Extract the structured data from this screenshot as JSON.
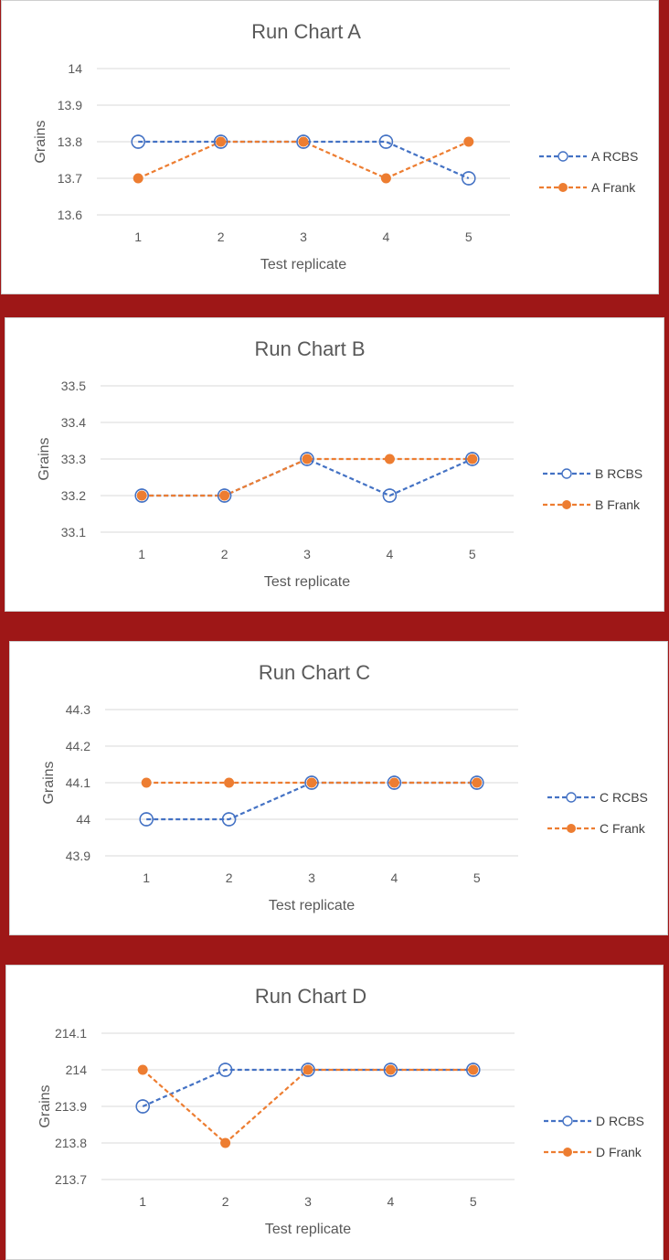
{
  "colors": {
    "rcbs": "#4472c4",
    "frank": "#ed7d31",
    "grid": "#d9d9d9",
    "text": "#595959"
  },
  "chart_data": [
    {
      "type": "line",
      "title": "Run Chart A",
      "xlabel": "Test replicate",
      "ylabel": "Grains",
      "x": [
        1,
        2,
        3,
        4,
        5
      ],
      "x_labels": [
        "1",
        "2",
        "3",
        "4",
        "5"
      ],
      "y_ticks": [
        13.6,
        13.7,
        13.8,
        13.9,
        14
      ],
      "y_tick_labels": [
        "13.6",
        "13.7",
        "13.8",
        "13.9",
        "14"
      ],
      "ylim": [
        13.6,
        14
      ],
      "grid": true,
      "legend": "right",
      "series": [
        {
          "name": "A RCBS",
          "marker": "hollow-circle",
          "values": [
            13.8,
            13.8,
            13.8,
            13.8,
            13.7
          ]
        },
        {
          "name": "A Frank",
          "marker": "filled-circle",
          "values": [
            13.7,
            13.8,
            13.8,
            13.7,
            13.8
          ]
        }
      ]
    },
    {
      "type": "line",
      "title": "Run Chart B",
      "xlabel": "Test replicate",
      "ylabel": "Grains",
      "x": [
        1,
        2,
        3,
        4,
        5
      ],
      "x_labels": [
        "1",
        "2",
        "3",
        "4",
        "5"
      ],
      "y_ticks": [
        33.1,
        33.2,
        33.3,
        33.4,
        33.5
      ],
      "y_tick_labels": [
        "33.1",
        "33.2",
        "33.3",
        "33.4",
        "33.5"
      ],
      "ylim": [
        33.1,
        33.5
      ],
      "grid": true,
      "legend": "right",
      "series": [
        {
          "name": "B RCBS",
          "marker": "hollow-circle",
          "values": [
            33.2,
            33.2,
            33.3,
            33.2,
            33.3
          ]
        },
        {
          "name": "B Frank",
          "marker": "filled-circle",
          "values": [
            33.2,
            33.2,
            33.3,
            33.3,
            33.3
          ]
        }
      ]
    },
    {
      "type": "line",
      "title": "Run Chart C",
      "xlabel": "Test replicate",
      "ylabel": "Grains",
      "x": [
        1,
        2,
        3,
        4,
        5
      ],
      "x_labels": [
        "1",
        "2",
        "3",
        "4",
        "5"
      ],
      "y_ticks": [
        43.9,
        44,
        44.1,
        44.2,
        44.3
      ],
      "y_tick_labels": [
        "43.9",
        "44",
        "44.1",
        "44.2",
        "44.3"
      ],
      "ylim": [
        43.9,
        44.3
      ],
      "grid": true,
      "legend": "right",
      "series": [
        {
          "name": "C RCBS",
          "marker": "hollow-circle",
          "values": [
            44,
            44,
            44.1,
            44.1,
            44.1
          ]
        },
        {
          "name": "C Frank",
          "marker": "filled-circle",
          "values": [
            44.1,
            44.1,
            44.1,
            44.1,
            44.1
          ]
        }
      ]
    },
    {
      "type": "line",
      "title": "Run Chart D",
      "xlabel": "Test replicate",
      "ylabel": "Grains",
      "x": [
        1,
        2,
        3,
        4,
        5
      ],
      "x_labels": [
        "1",
        "2",
        "3",
        "4",
        "5"
      ],
      "y_ticks": [
        213.7,
        213.8,
        213.9,
        214,
        214.1
      ],
      "y_tick_labels": [
        "213.7",
        "213.8",
        "213.9",
        "214",
        "214.1"
      ],
      "ylim": [
        213.7,
        214.1
      ],
      "grid": true,
      "legend": "right",
      "series": [
        {
          "name": "D RCBS",
          "marker": "hollow-circle",
          "values": [
            213.9,
            214,
            214,
            214,
            214
          ]
        },
        {
          "name": "D Frank",
          "marker": "filled-circle",
          "values": [
            214,
            213.8,
            214,
            214,
            214
          ]
        }
      ]
    }
  ]
}
